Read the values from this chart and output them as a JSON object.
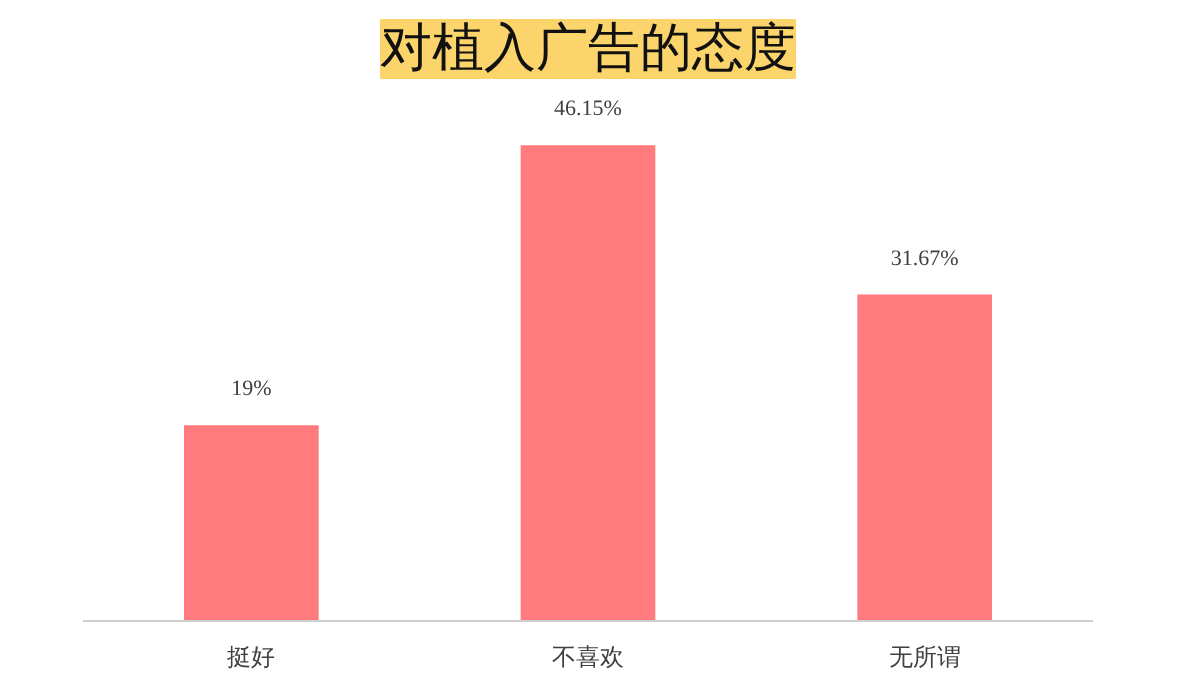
{
  "chart_data": {
    "type": "bar",
    "title": "对植入广告的态度",
    "categories": [
      "挺好",
      "不喜欢",
      "无所谓"
    ],
    "values": [
      19,
      46.15,
      31.67
    ],
    "value_labels": [
      "19%",
      "46.15%",
      "31.67%"
    ],
    "color": "#ff7b7e",
    "grid": false
  }
}
